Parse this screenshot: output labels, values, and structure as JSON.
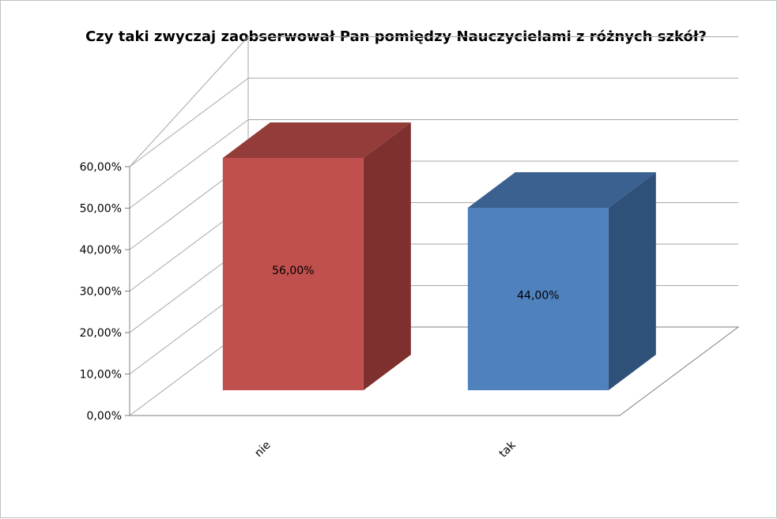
{
  "chart_data": {
    "type": "bar",
    "title": "Czy taki zwyczaj zaobserwował Pan pomiędzy Nauczycielami z różnych szkół?",
    "categories": [
      "nie",
      "tak"
    ],
    "values": [
      56.0,
      44.0
    ],
    "data_labels": [
      "56,00%",
      "44,00%"
    ],
    "ylim": [
      0,
      60
    ],
    "yticks": [
      {
        "value": 0,
        "label": "0,00%"
      },
      {
        "value": 10,
        "label": "10,00%"
      },
      {
        "value": 20,
        "label": "20,00%"
      },
      {
        "value": 30,
        "label": "30,00%"
      },
      {
        "value": 40,
        "label": "40,00%"
      },
      {
        "value": 50,
        "label": "50,00%"
      },
      {
        "value": 60,
        "label": "60,00%"
      }
    ],
    "xlabel": "",
    "ylabel": "",
    "grid": true,
    "legend": "none",
    "three_d": true,
    "colors": {
      "series": [
        "#C0504D",
        "#4F81BD"
      ],
      "series_top": [
        "#943C3A",
        "#3B6191"
      ],
      "series_side": [
        "#7E302F",
        "#2F5079"
      ],
      "grid": "#a6a6a6",
      "axis": "#7f7f7f"
    }
  }
}
